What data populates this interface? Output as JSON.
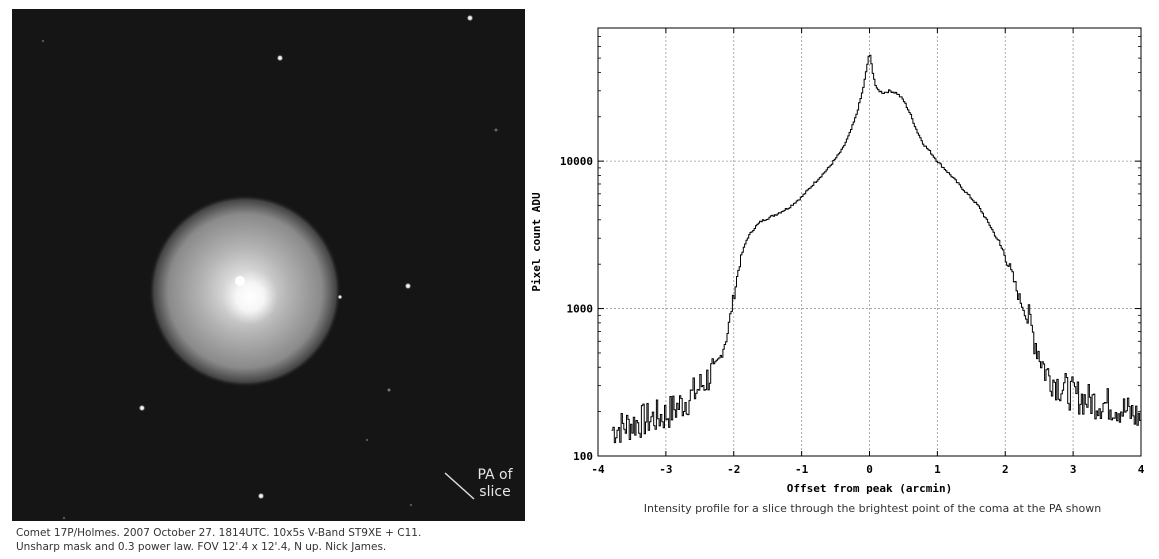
{
  "image": {
    "pa_label_line1": "PA of",
    "pa_label_line2": "slice",
    "caption_line1": "Comet 17P/Holmes. 2007 October 27. 1814UTC. 10x5s V-Band ST9XE + C11.",
    "caption_line2": "Unsharp mask and 0.3 power law. FOV 12'.4 x 12'.4, N up. Nick James."
  },
  "chart_caption": "Intensity profile for a slice through the brightest point of the coma at the PA shown",
  "chart_data": {
    "type": "line",
    "title": "",
    "xlabel": "Offset from peak (arcmin)",
    "ylabel": "Pixel count ADU",
    "xlim": [
      -4,
      4
    ],
    "ylim": [
      100,
      80000
    ],
    "yscale": "log",
    "grid": true,
    "x_ticks": [
      -4,
      -3,
      -2,
      -1,
      0,
      1,
      2,
      3,
      4
    ],
    "x_tick_labels": [
      "-4",
      "-3",
      "-2",
      "-1",
      "0",
      "1",
      "2",
      "3",
      "4"
    ],
    "y_ticks": [
      100,
      1000,
      10000
    ],
    "y_tick_labels": [
      "100",
      "1000",
      "10000"
    ],
    "series": [
      {
        "style": "step",
        "color": "#000000",
        "x": [
          -3.8,
          -3.6,
          -3.4,
          -3.2,
          -3.0,
          -2.8,
          -2.6,
          -2.4,
          -2.3,
          -2.2,
          -2.1,
          -2.0,
          -1.9,
          -1.8,
          -1.7,
          -1.6,
          -1.5,
          -1.4,
          -1.2,
          -1.0,
          -0.8,
          -0.6,
          -0.4,
          -0.3,
          -0.2,
          -0.1,
          -0.05,
          0.0,
          0.05,
          0.1,
          0.2,
          0.3,
          0.4,
          0.5,
          0.6,
          0.7,
          0.8,
          0.9,
          1.0,
          1.2,
          1.4,
          1.6,
          1.8,
          2.0,
          2.1,
          2.2,
          2.3,
          2.4,
          2.5,
          2.6,
          2.8,
          3.0,
          3.2,
          3.4,
          3.6,
          3.8,
          4.0
        ],
        "y": [
          150,
          160,
          170,
          180,
          190,
          220,
          260,
          330,
          380,
          460,
          650,
          1200,
          2200,
          3000,
          3500,
          3900,
          4100,
          4300,
          4800,
          5700,
          7200,
          9000,
          12000,
          15000,
          20000,
          30000,
          40000,
          55000,
          40000,
          31000,
          29000,
          30000,
          29000,
          26000,
          21000,
          16000,
          13000,
          11500,
          10000,
          8000,
          6300,
          5000,
          3500,
          2300,
          1700,
          1200,
          950,
          700,
          500,
          370,
          300,
          260,
          240,
          230,
          220,
          200,
          180
        ]
      }
    ]
  }
}
